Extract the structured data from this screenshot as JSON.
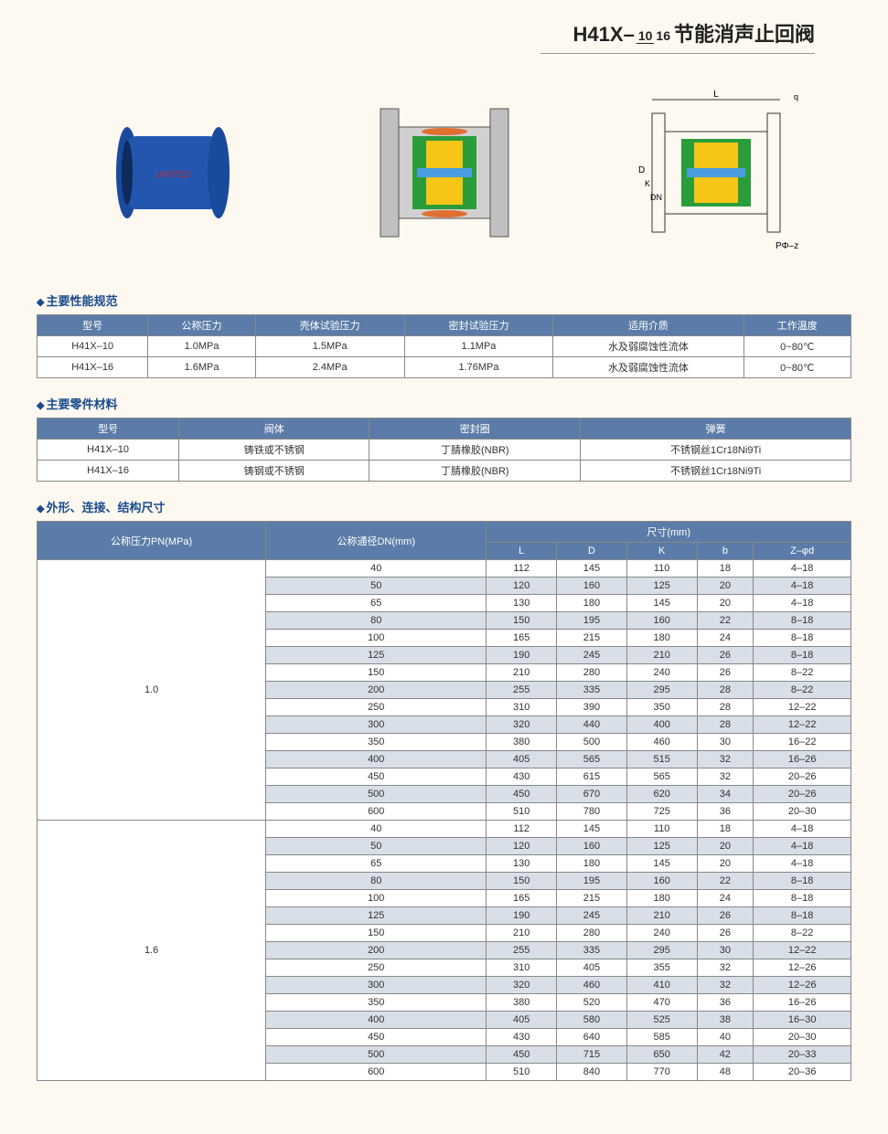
{
  "title": {
    "prefix": "H41X–",
    "frac_top": "10",
    "frac_bot": "16",
    "suffix": "节能消声止回阀"
  },
  "sections": {
    "spec": "主要性能规范",
    "material": "主要零件材料",
    "dim": "外形、连接、结构尺寸"
  },
  "spec_table": {
    "headers": [
      "型号",
      "公称压力",
      "壳体试验压力",
      "密封试验压力",
      "适用介质",
      "工作温度"
    ],
    "rows": [
      [
        "H41X–10",
        "1.0MPa",
        "1.5MPa",
        "1.1MPa",
        "水及弱腐蚀性流体",
        "0~80℃"
      ],
      [
        "H41X–16",
        "1.6MPa",
        "2.4MPa",
        "1.76MPa",
        "水及弱腐蚀性流体",
        "0~80℃"
      ]
    ]
  },
  "material_table": {
    "headers": [
      "型号",
      "阀体",
      "密封圈",
      "弹簧"
    ],
    "rows": [
      [
        "H41X–10",
        "铸铁或不锈钢",
        "丁腈橡胶(NBR)",
        "不锈钢丝1Cr18Ni9Ti"
      ],
      [
        "H41X–16",
        "铸钢或不锈钢",
        "丁腈橡胶(NBR)",
        "不锈钢丝1Cr18Ni9Ti"
      ]
    ]
  },
  "dim_table": {
    "top_headers": {
      "pn": "公称压力PN(MPa)",
      "dn": "公称通径DN(mm)",
      "size": "尺寸(mm)"
    },
    "sub_headers": [
      "L",
      "D",
      "K",
      "b",
      "Z–φd"
    ],
    "groups": [
      {
        "pn": "1.0",
        "rows": [
          [
            "40",
            "112",
            "145",
            "110",
            "18",
            "4–18"
          ],
          [
            "50",
            "120",
            "160",
            "125",
            "20",
            "4–18"
          ],
          [
            "65",
            "130",
            "180",
            "145",
            "20",
            "4–18"
          ],
          [
            "80",
            "150",
            "195",
            "160",
            "22",
            "8–18"
          ],
          [
            "100",
            "165",
            "215",
            "180",
            "24",
            "8–18"
          ],
          [
            "125",
            "190",
            "245",
            "210",
            "26",
            "8–18"
          ],
          [
            "150",
            "210",
            "280",
            "240",
            "26",
            "8–22"
          ],
          [
            "200",
            "255",
            "335",
            "295",
            "28",
            "8–22"
          ],
          [
            "250",
            "310",
            "390",
            "350",
            "28",
            "12–22"
          ],
          [
            "300",
            "320",
            "440",
            "400",
            "28",
            "12–22"
          ],
          [
            "350",
            "380",
            "500",
            "460",
            "30",
            "16–22"
          ],
          [
            "400",
            "405",
            "565",
            "515",
            "32",
            "16–26"
          ],
          [
            "450",
            "430",
            "615",
            "565",
            "32",
            "20–26"
          ],
          [
            "500",
            "450",
            "670",
            "620",
            "34",
            "20–26"
          ],
          [
            "600",
            "510",
            "780",
            "725",
            "36",
            "20–30"
          ]
        ]
      },
      {
        "pn": "1.6",
        "rows": [
          [
            "40",
            "112",
            "145",
            "110",
            "18",
            "4–18"
          ],
          [
            "50",
            "120",
            "160",
            "125",
            "20",
            "4–18"
          ],
          [
            "65",
            "130",
            "180",
            "145",
            "20",
            "4–18"
          ],
          [
            "80",
            "150",
            "195",
            "160",
            "22",
            "8–18"
          ],
          [
            "100",
            "165",
            "215",
            "180",
            "24",
            "8–18"
          ],
          [
            "125",
            "190",
            "245",
            "210",
            "26",
            "8–18"
          ],
          [
            "150",
            "210",
            "280",
            "240",
            "26",
            "8–22"
          ],
          [
            "200",
            "255",
            "335",
            "295",
            "30",
            "12–22"
          ],
          [
            "250",
            "310",
            "405",
            "355",
            "32",
            "12–26"
          ],
          [
            "300",
            "320",
            "460",
            "410",
            "32",
            "12–26"
          ],
          [
            "350",
            "380",
            "520",
            "470",
            "36",
            "16–26"
          ],
          [
            "400",
            "405",
            "580",
            "525",
            "38",
            "16–30"
          ],
          [
            "450",
            "430",
            "640",
            "585",
            "40",
            "20–30"
          ],
          [
            "500",
            "450",
            "715",
            "650",
            "42",
            "20–33"
          ],
          [
            "600",
            "510",
            "840",
            "770",
            "48",
            "20–36"
          ]
        ]
      }
    ]
  },
  "colors": {
    "header_bg": "#5b7ca8",
    "alt_row": "#d8dfe8",
    "title_color": "#1a4b8c"
  }
}
